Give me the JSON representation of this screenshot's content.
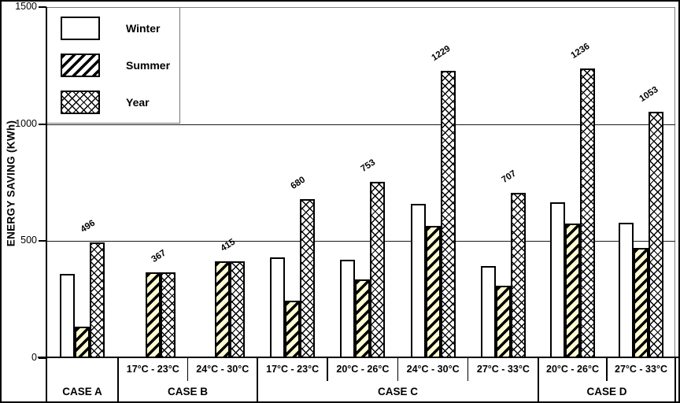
{
  "legend": [
    {
      "label": "Winter",
      "pattern": "solid-white"
    },
    {
      "label": "Summer",
      "pattern": "diagonal-hatch"
    },
    {
      "label": "Year",
      "pattern": "cross-hatch"
    }
  ],
  "colors": {
    "summer_fill": "#FFFCD2",
    "hatch": "#000000",
    "bar_border": "#000000",
    "legend_border": "#777777",
    "grid": "#1A1A1A"
  },
  "chart_data": {
    "type": "bar",
    "title": "",
    "xlabel": "",
    "ylabel": "ENERGY SAVING (KWh)",
    "ylim": [
      0,
      1500
    ],
    "yticks": [
      0,
      500,
      1000,
      1500
    ],
    "grid": "horizontal",
    "legend_position": "top-left",
    "series_names": [
      "Winter",
      "Summer",
      "Year"
    ],
    "groups": [
      {
        "case": "CASE A",
        "range": "",
        "winter": 360,
        "summer": 135,
        "year": 496
      },
      {
        "case": "CASE B",
        "range": "17°C - 23°C",
        "winter": null,
        "summer": 367,
        "year": 367
      },
      {
        "case": "CASE B",
        "range": "24°C - 30°C",
        "winter": null,
        "summer": 415,
        "year": 415
      },
      {
        "case": "CASE C",
        "range": "17°C - 23°C",
        "winter": 430,
        "summer": 245,
        "year": 680
      },
      {
        "case": "CASE C",
        "range": "20°C - 26°C",
        "winter": 420,
        "summer": 335,
        "year": 753
      },
      {
        "case": "CASE C",
        "range": "24°C - 30°C",
        "winter": 660,
        "summer": 565,
        "year": 1229
      },
      {
        "case": "CASE C",
        "range": "27°C - 33°C",
        "winter": 395,
        "summer": 310,
        "year": 707
      },
      {
        "case": "CASE D",
        "range": "20°C - 26°C",
        "winter": 665,
        "summer": 575,
        "year": 1236
      },
      {
        "case": "CASE D",
        "range": "27°C - 33°C",
        "winter": 580,
        "summer": 470,
        "year": 1053
      }
    ],
    "year_bar_labels": [
      "496",
      "367",
      "415",
      "680",
      "753",
      "1229",
      "707",
      "1236",
      "1053"
    ]
  }
}
